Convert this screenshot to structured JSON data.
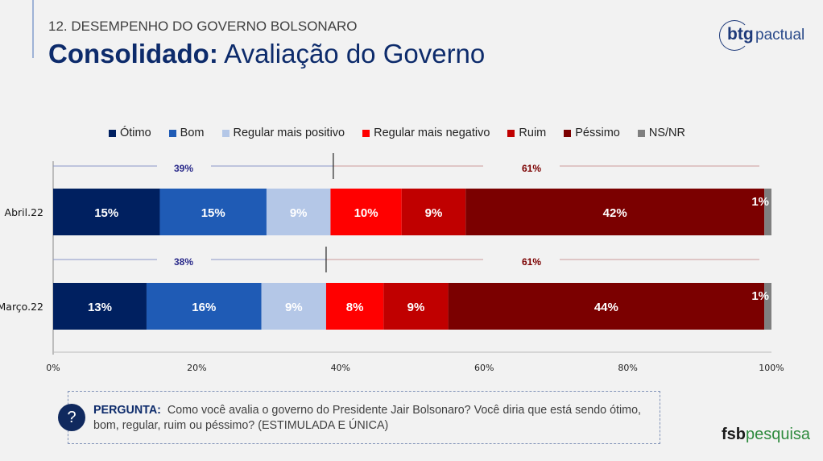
{
  "header": {
    "kicker": "12. DESEMPENHO DO GOVERNO BOLSONARO",
    "title_bold": "Consolidado:",
    "title_rest": " Avaliação do Governo"
  },
  "logo": {
    "brand": "btg",
    "suffix": "pactual"
  },
  "chart_data": {
    "type": "bar",
    "orientation": "horizontal",
    "stacked": true,
    "legend": [
      "Ótimo",
      "Bom",
      "Regular mais positivo",
      "Regular mais negativo",
      "Ruim",
      "Péssimo",
      "NS/NR"
    ],
    "colors": [
      "#002060",
      "#1f5bb5",
      "#b4c7e7",
      "#ff0000",
      "#c00000",
      "#7b0000",
      "#7f7f7f"
    ],
    "categories": [
      "Abril.22",
      "Março.22"
    ],
    "series_values": [
      [
        15,
        15,
        9,
        10,
        9,
        42,
        1
      ],
      [
        13,
        16,
        9,
        8,
        9,
        44,
        1
      ]
    ],
    "labels": [
      [
        "15%",
        "15%",
        "9%",
        "10%",
        "9%",
        "42%",
        "1%"
      ],
      [
        "13%",
        "16%",
        "9%",
        "8%",
        "9%",
        "44%",
        "1%"
      ]
    ],
    "positive_total": [
      39,
      38
    ],
    "negative_total": [
      61,
      61
    ],
    "positive_labels": [
      "39%",
      "38%"
    ],
    "negative_labels": [
      "61%",
      "61%"
    ],
    "xticks": [
      "0%",
      "20%",
      "40%",
      "60%",
      "80%",
      "100%"
    ],
    "xlim": [
      0,
      100
    ]
  },
  "question": {
    "label": "PERGUNTA:",
    "text": "Como você avalia o governo do Presidente Jair Bolsonaro? Você diria que está sendo ótimo, bom, regular, ruim ou péssimo? (ESTIMULADA E ÚNICA)",
    "icon": "?"
  },
  "footer": {
    "brand_bold": "fsb",
    "brand_rest": "pesquisa"
  }
}
